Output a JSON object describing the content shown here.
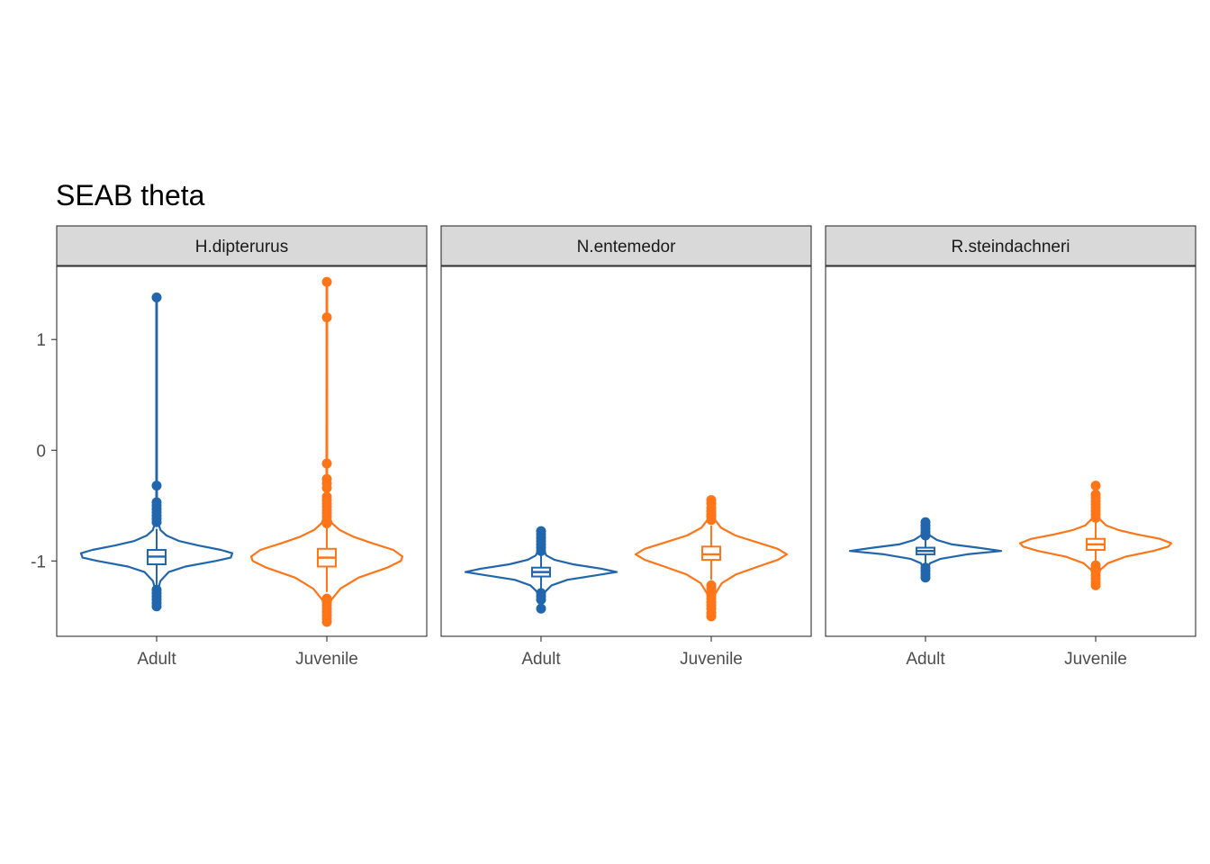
{
  "chart_data": {
    "type": "violin",
    "title": "SEAB theta",
    "xlabel": "",
    "ylabel": "",
    "ylim": [
      -1.68,
      1.66
    ],
    "yticks": [
      1,
      0,
      -1
    ],
    "ytick_labels": [
      "1",
      "0",
      "-1"
    ],
    "categories": [
      "Adult",
      "Juvenile"
    ],
    "colors": {
      "Adult": "#2166ac",
      "Juvenile": "#ff7518"
    },
    "grid": false,
    "legend": "none",
    "facets": [
      {
        "name": "H.dipterurus",
        "groups": [
          {
            "category": "Adult",
            "q1": -1.03,
            "median": -0.96,
            "q3": -0.9,
            "whisker_low": -1.22,
            "whisker_high": -0.71,
            "violin": [
              [
                -1.32,
                0.005
              ],
              [
                -1.25,
                0.02
              ],
              [
                -1.18,
                0.05
              ],
              [
                -1.1,
                0.16
              ],
              [
                -1.05,
                0.38
              ],
              [
                -1.0,
                0.78
              ],
              [
                -0.97,
                0.98
              ],
              [
                -0.93,
                1.0
              ],
              [
                -0.9,
                0.85
              ],
              [
                -0.86,
                0.55
              ],
              [
                -0.82,
                0.3
              ],
              [
                -0.77,
                0.13
              ],
              [
                -0.72,
                0.05
              ],
              [
                -0.65,
                0.02
              ],
              [
                -0.6,
                0.01
              ],
              [
                -0.45,
                0.005
              ],
              [
                -0.32,
                0.004
              ],
              [
                1.38,
                0.004
              ]
            ],
            "outliers": [
              1.38,
              -0.32,
              -0.47,
              -0.5,
              -0.53,
              -0.56,
              -0.59,
              -0.62,
              -0.65,
              -1.26,
              -1.29,
              -1.32,
              -1.35,
              -1.38,
              -1.41
            ]
          },
          {
            "category": "Juvenile",
            "q1": -1.05,
            "median": -0.97,
            "q3": -0.89,
            "whisker_low": -1.28,
            "whisker_high": -0.67,
            "violin": [
              [
                -1.56,
                0.005
              ],
              [
                -1.45,
                0.02
              ],
              [
                -1.35,
                0.06
              ],
              [
                -1.25,
                0.18
              ],
              [
                -1.15,
                0.42
              ],
              [
                -1.06,
                0.8
              ],
              [
                -1.0,
                0.98
              ],
              [
                -0.96,
                1.0
              ],
              [
                -0.9,
                0.88
              ],
              [
                -0.84,
                0.6
              ],
              [
                -0.78,
                0.35
              ],
              [
                -0.72,
                0.17
              ],
              [
                -0.66,
                0.07
              ],
              [
                -0.6,
                0.03
              ],
              [
                -0.5,
                0.01
              ],
              [
                -0.3,
                0.005
              ],
              [
                1.52,
                0.004
              ]
            ],
            "outliers": [
              1.52,
              1.2,
              -0.12,
              -0.26,
              -0.3,
              -0.34,
              -0.42,
              -0.45,
              -0.48,
              -0.51,
              -0.54,
              -0.57,
              -0.6,
              -0.63,
              -0.66,
              -1.34,
              -1.37,
              -1.4,
              -1.43,
              -1.46,
              -1.49,
              -1.52,
              -1.55
            ]
          }
        ]
      },
      {
        "name": "N.entemedor",
        "groups": [
          {
            "category": "Adult",
            "q1": -1.14,
            "median": -1.1,
            "q3": -1.06,
            "whisker_low": -1.25,
            "whisker_high": -0.94,
            "violin": [
              [
                -1.43,
                0.005
              ],
              [
                -1.35,
                0.02
              ],
              [
                -1.28,
                0.05
              ],
              [
                -1.22,
                0.14
              ],
              [
                -1.17,
                0.35
              ],
              [
                -1.13,
                0.72
              ],
              [
                -1.1,
                1.0
              ],
              [
                -1.07,
                0.8
              ],
              [
                -1.03,
                0.42
              ],
              [
                -0.99,
                0.18
              ],
              [
                -0.95,
                0.07
              ],
              [
                -0.88,
                0.02
              ],
              [
                -0.8,
                0.008
              ],
              [
                -0.73,
                0.004
              ]
            ],
            "outliers": [
              -0.73,
              -0.76,
              -0.79,
              -0.82,
              -0.85,
              -0.88,
              -0.91,
              -1.29,
              -1.32,
              -1.35,
              -1.43
            ]
          },
          {
            "category": "Juvenile",
            "q1": -0.99,
            "median": -0.94,
            "q3": -0.87,
            "whisker_low": -1.17,
            "whisker_high": -0.68,
            "violin": [
              [
                -1.5,
                0.005
              ],
              [
                -1.4,
                0.02
              ],
              [
                -1.3,
                0.05
              ],
              [
                -1.2,
                0.14
              ],
              [
                -1.12,
                0.33
              ],
              [
                -1.05,
                0.62
              ],
              [
                -0.99,
                0.88
              ],
              [
                -0.94,
                1.0
              ],
              [
                -0.89,
                0.88
              ],
              [
                -0.83,
                0.6
              ],
              [
                -0.77,
                0.32
              ],
              [
                -0.7,
                0.13
              ],
              [
                -0.62,
                0.04
              ],
              [
                -0.55,
                0.015
              ],
              [
                -0.45,
                0.004
              ]
            ],
            "outliers": [
              -0.45,
              -0.48,
              -0.52,
              -0.55,
              -0.58,
              -0.6,
              -0.63,
              -1.22,
              -1.25,
              -1.28,
              -1.31,
              -1.34,
              -1.37,
              -1.4,
              -1.43,
              -1.47,
              -1.5
            ]
          }
        ]
      },
      {
        "name": "R.steindachneri",
        "groups": [
          {
            "category": "Adult",
            "q1": -0.94,
            "median": -0.91,
            "q3": -0.88,
            "whisker_low": -1.03,
            "whisker_high": -0.78,
            "violin": [
              [
                -1.15,
                0.005
              ],
              [
                -1.08,
                0.02
              ],
              [
                -1.02,
                0.06
              ],
              [
                -0.98,
                0.2
              ],
              [
                -0.94,
                0.55
              ],
              [
                -0.91,
                1.0
              ],
              [
                -0.88,
                0.7
              ],
              [
                -0.85,
                0.35
              ],
              [
                -0.81,
                0.15
              ],
              [
                -0.77,
                0.06
              ],
              [
                -0.72,
                0.02
              ],
              [
                -0.65,
                0.004
              ]
            ],
            "outliers": [
              -0.65,
              -0.68,
              -0.71,
              -0.74,
              -0.77,
              -1.06,
              -1.09,
              -1.12,
              -1.15
            ]
          },
          {
            "category": "Juvenile",
            "q1": -0.9,
            "median": -0.85,
            "q3": -0.8,
            "whisker_low": -1.01,
            "whisker_high": -0.63,
            "violin": [
              [
                -1.23,
                0.005
              ],
              [
                -1.15,
                0.02
              ],
              [
                -1.08,
                0.06
              ],
              [
                -1.02,
                0.16
              ],
              [
                -0.96,
                0.4
              ],
              [
                -0.91,
                0.76
              ],
              [
                -0.87,
                0.96
              ],
              [
                -0.84,
                1.0
              ],
              [
                -0.8,
                0.85
              ],
              [
                -0.76,
                0.55
              ],
              [
                -0.72,
                0.3
              ],
              [
                -0.68,
                0.14
              ],
              [
                -0.62,
                0.05
              ],
              [
                -0.55,
                0.015
              ],
              [
                -0.45,
                0.006
              ],
              [
                -0.32,
                0.004
              ]
            ],
            "outliers": [
              -0.32,
              -0.4,
              -0.43,
              -0.46,
              -0.49,
              -0.52,
              -0.55,
              -0.58,
              -0.61,
              -1.04,
              -1.07,
              -1.1,
              -1.13,
              -1.16,
              -1.19,
              -1.22
            ]
          }
        ]
      }
    ]
  }
}
